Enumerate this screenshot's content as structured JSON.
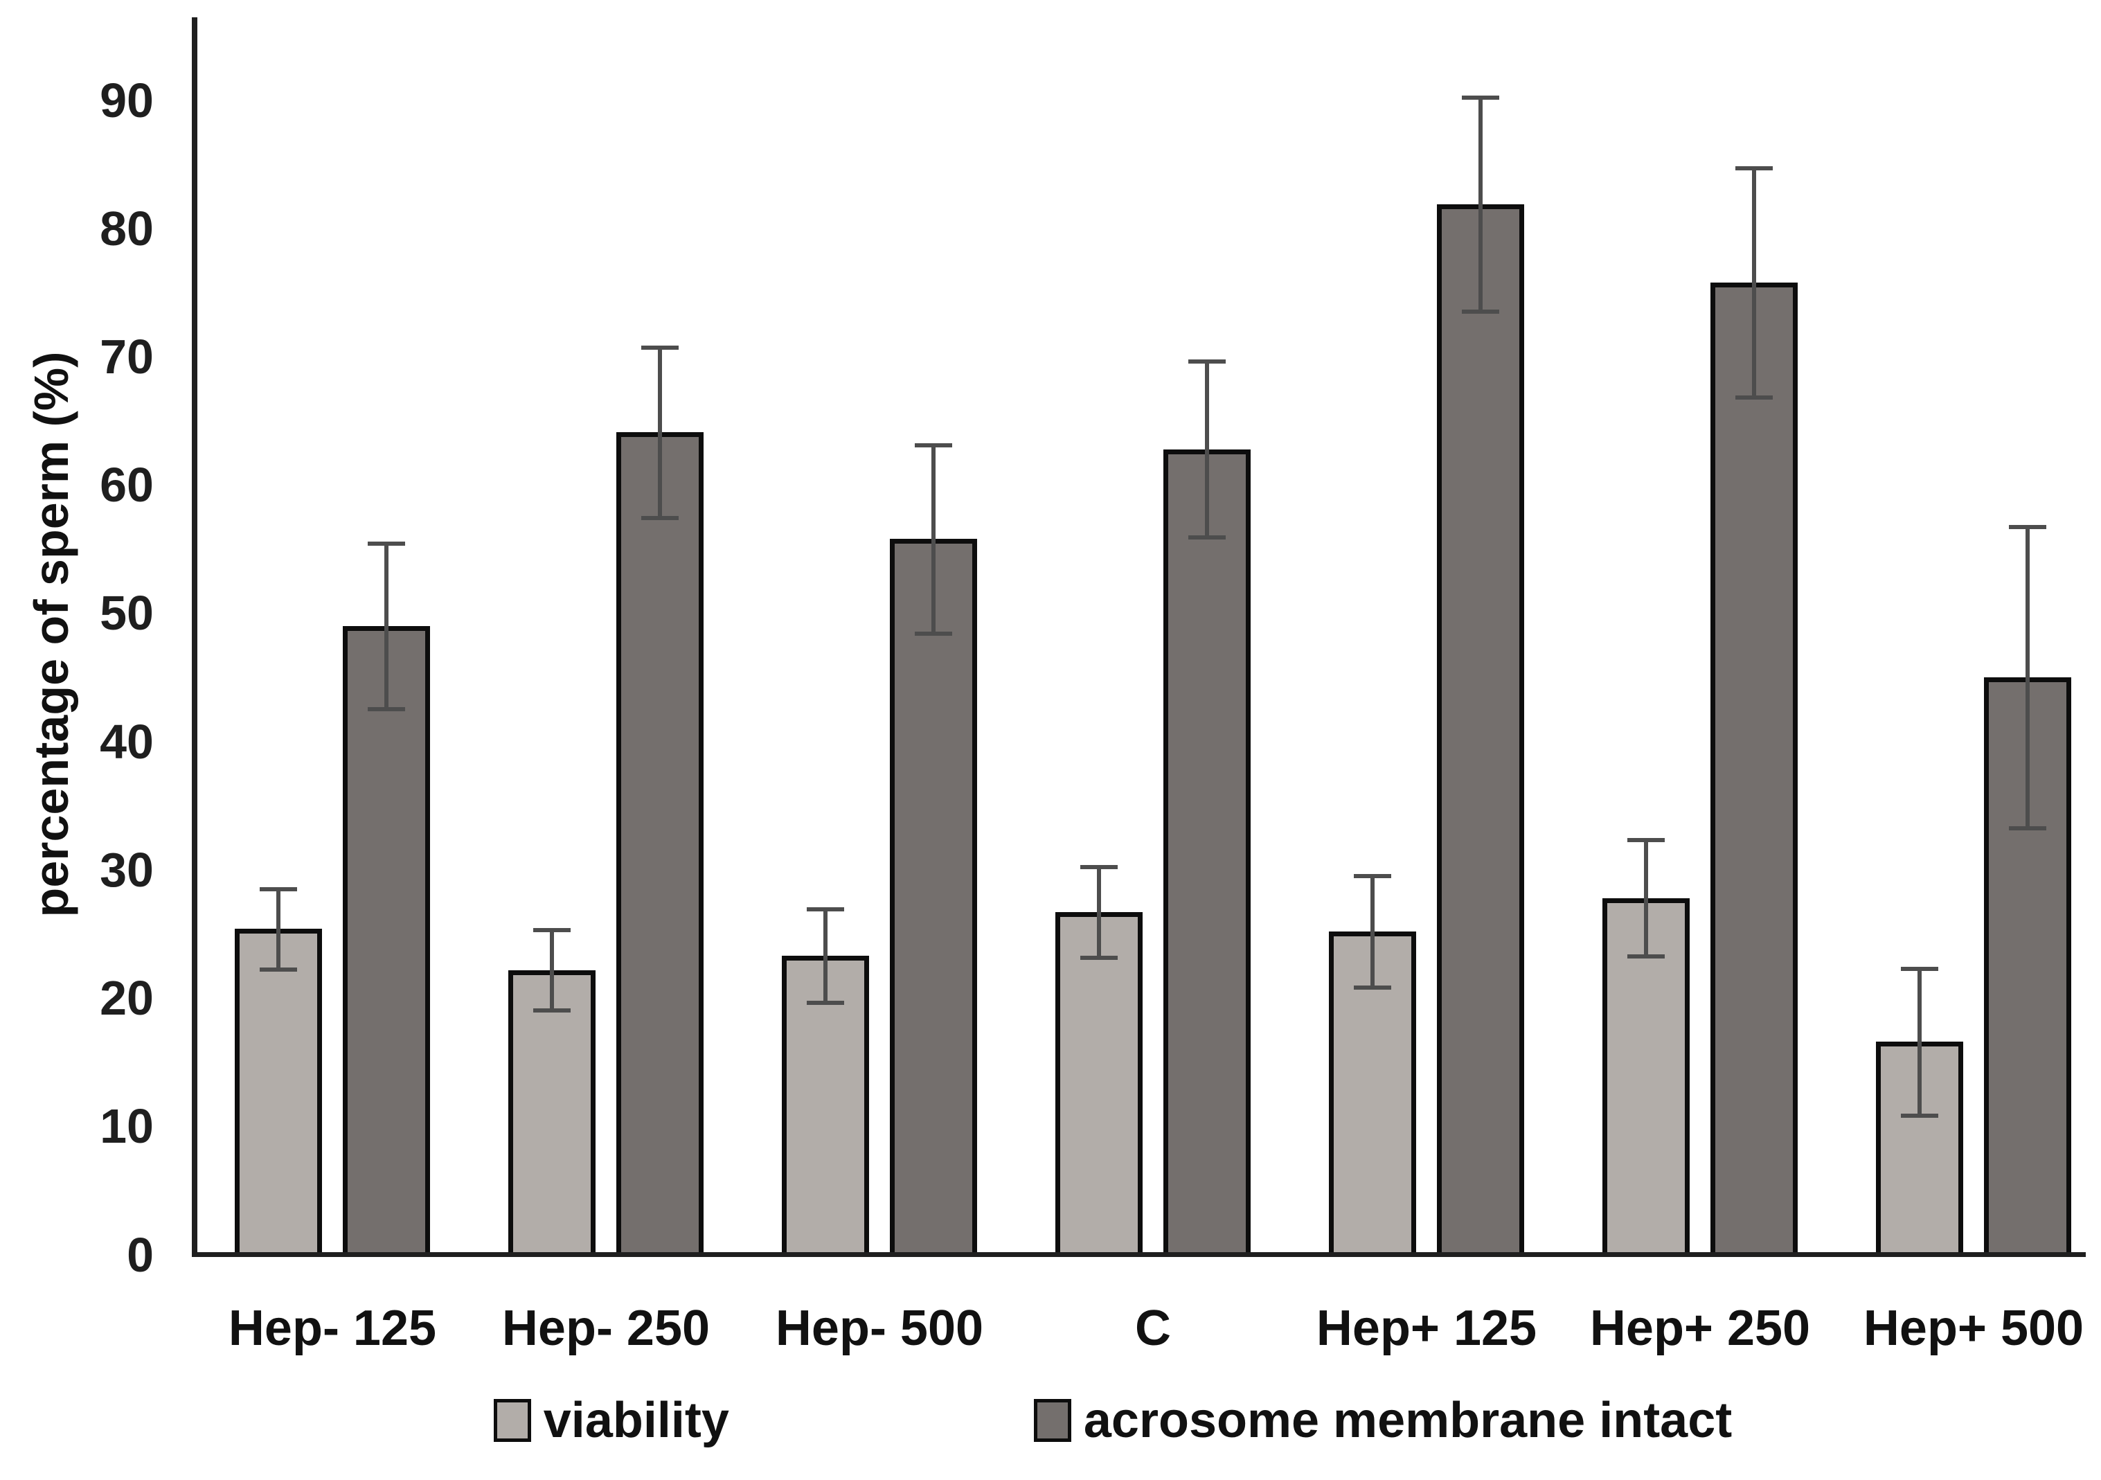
{
  "chart_data": {
    "type": "bar",
    "title": "",
    "xlabel": "",
    "ylabel": "percentage of sperm (%)",
    "ylim": [
      0,
      96
    ],
    "yticks": [
      0,
      10,
      20,
      30,
      40,
      50,
      60,
      70,
      80,
      90
    ],
    "grid": false,
    "legend_position": "bottom",
    "categories": [
      "Hep- 125",
      "Hep- 250",
      "Hep- 500",
      "C",
      "Hep+ 125",
      "Hep+ 250",
      "Hep+ 500"
    ],
    "series": [
      {
        "name": "viability",
        "color": "#b2ada9",
        "values": [
          25.2,
          22.0,
          23.1,
          26.5,
          25.0,
          27.6,
          16.4
        ],
        "errors": [
          3.0,
          3.0,
          3.5,
          3.4,
          4.2,
          4.4,
          5.6
        ]
      },
      {
        "name": "acrosome membrane intact",
        "color": "#746f6d",
        "values": [
          48.8,
          63.9,
          55.6,
          62.6,
          81.7,
          75.6,
          44.8
        ],
        "errors": [
          6.3,
          6.5,
          7.2,
          6.7,
          8.2,
          8.8,
          11.6
        ]
      }
    ],
    "colors": {
      "bar_border": "#0d0d0d",
      "error_bar": "#4d4d4d",
      "axis": "#1f1f1f",
      "text": "#111111"
    }
  }
}
